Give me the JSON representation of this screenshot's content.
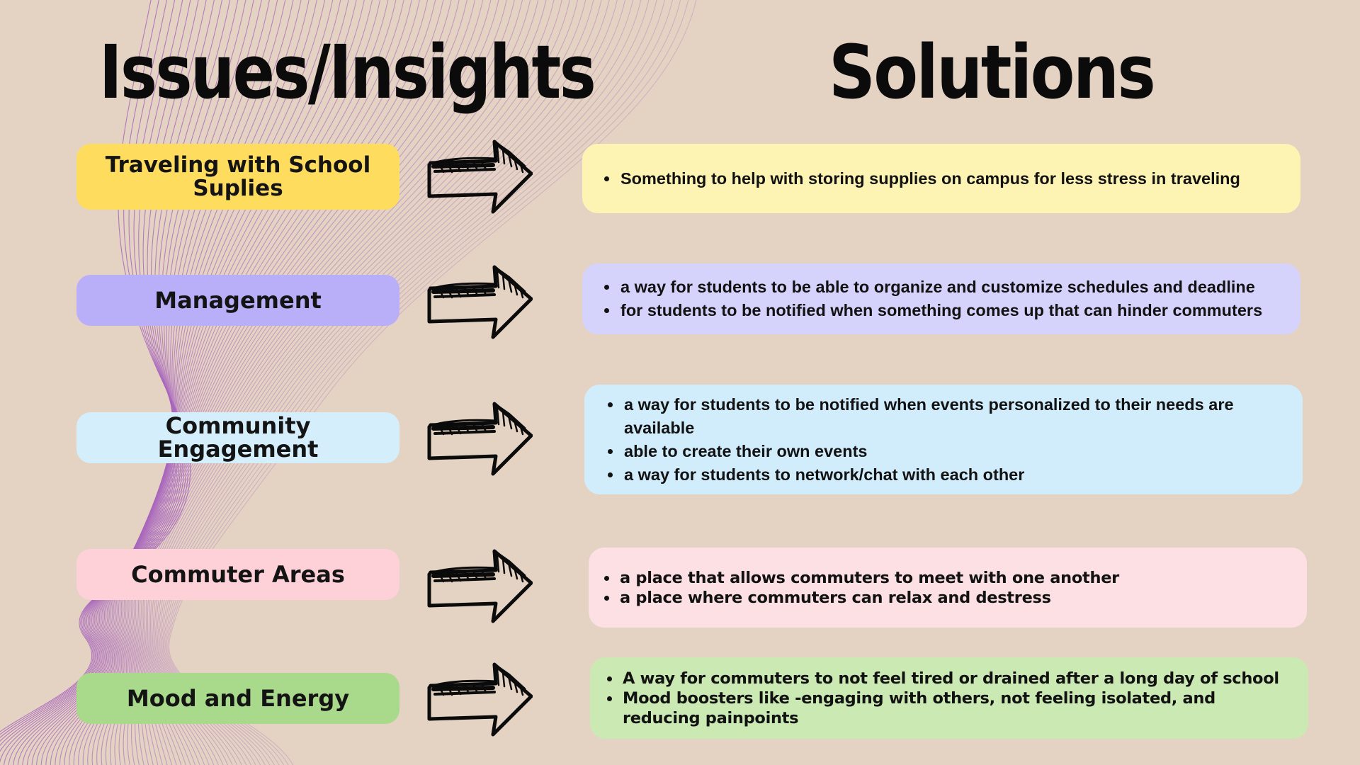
{
  "headings": {
    "issues": "Issues/Insights",
    "solutions": "Solutions"
  },
  "icons": {
    "arrow": "hand-drawn-right-arrow-icon",
    "bullet": "bullet-dot"
  },
  "colors": {
    "background": "#e4d3c3",
    "waves": "#a865bd",
    "yellow_label": "#fddc5e",
    "yellow_panel": "#fdf3b3",
    "purple_label": "#b9aef8",
    "purple_panel": "#d5d2fb",
    "blue_label": "#d5eefc",
    "blue_panel": "#d1edfc",
    "pink_label": "#fdd1d7",
    "pink_panel": "#fde0e3",
    "green_label": "#a9d98a",
    "green_panel": "#cbe9b3"
  },
  "rows": [
    {
      "issue": "Traveling with School Suplies",
      "solutions": [
        "Something to help with storing supplies on campus for less stress in traveling"
      ]
    },
    {
      "issue": "Management",
      "solutions": [
        "a way for students to be able to organize and customize schedules and deadline",
        "for students to be notified when something comes up that can hinder commuters"
      ]
    },
    {
      "issue": "Community Engagement",
      "solutions": [
        "a way for students to be notified when events personalized to their needs are available",
        "able to create their own events",
        "a way for students to network/chat with each other"
      ]
    },
    {
      "issue": "Commuter Areas",
      "solutions": [
        "a place that allows commuters to meet with one another",
        "a place where commuters can relax and destress"
      ]
    },
    {
      "issue": "Mood and Energy",
      "solutions": [
        "A way for commuters to not feel tired or drained after a long day of school",
        "Mood boosters like -engaging with others, not feeling isolated, and reducing painpoints"
      ]
    }
  ]
}
